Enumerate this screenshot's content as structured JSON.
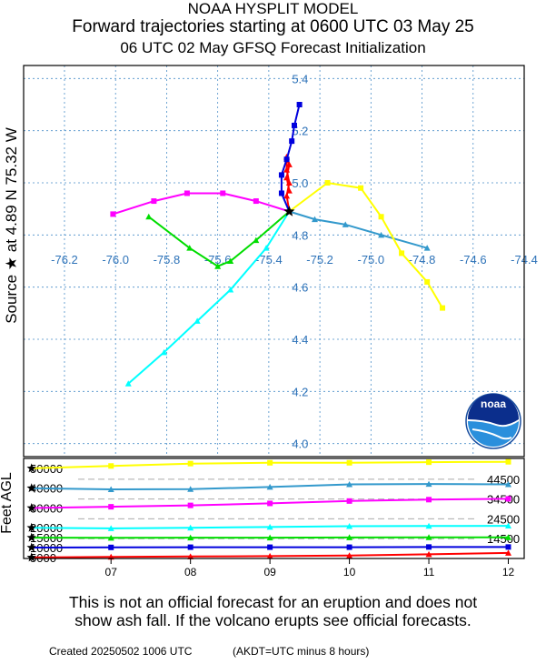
{
  "header": {
    "title": "NOAA HYSPLIT MODEL",
    "subtitle": "Forward trajectories starting at 0600 UTC 03 May 25",
    "meta": "06 UTC 02 May    GFSQ  Forecast Initialization"
  },
  "side_label_map": "Source ★  at    4.89 N   75.32 W",
  "side_label_alt": "Feet AGL",
  "logo_text": "noaa",
  "disclaimer": {
    "line1": "This is not an official forecast for an eruption and does not",
    "line2": "show ash fall. If the volcano erupts see official forecasts."
  },
  "footer": {
    "created": "Created 20250502 1006 UTC",
    "timezone": "(AKDT=UTC minus 8 hours)"
  },
  "chart_data": [
    {
      "type": "line",
      "name": "trajectory-map",
      "xlim": [
        -76.36,
        -74.4
      ],
      "ylim": [
        3.95,
        5.45
      ],
      "x_ticks": [
        -76.2,
        -76.0,
        -75.8,
        -75.6,
        -75.4,
        -75.2,
        -75.0,
        -74.8,
        -74.6,
        -74.4
      ],
      "x_tick_labels": [
        "-76.2",
        "-76.0",
        "-75.8",
        "-75.6",
        "-75.4",
        "-75.2",
        "-75.0",
        "-74.8",
        "-74.6",
        "-74.4"
      ],
      "y_ticks": [
        4.0,
        4.2,
        4.4,
        4.6,
        4.8,
        5.0,
        5.2,
        5.4
      ],
      "y_tick_labels": [
        "4.0",
        "4.2",
        "4.4",
        "4.6",
        "4.8",
        "5.0",
        "5.2",
        "5.4"
      ],
      "grid": true,
      "source": {
        "lon": -75.32,
        "lat": 4.89
      },
      "series": [
        {
          "color": "#ff0000",
          "marker": "triangle",
          "lon": [
            -75.32,
            -75.33,
            -75.32,
            -75.33,
            -75.33,
            -75.32,
            -75.33,
            -75.32
          ],
          "lat": [
            4.89,
            4.95,
            5.0,
            5.05,
            5.1,
            5.07,
            5.02,
            4.97
          ]
        },
        {
          "color": "#0000dd",
          "marker": "square",
          "lon": [
            -75.32,
            -75.35,
            -75.35,
            -75.33,
            -75.31,
            -75.3,
            -75.28
          ],
          "lat": [
            4.89,
            4.96,
            5.03,
            5.09,
            5.16,
            5.22,
            5.3
          ]
        },
        {
          "color": "#00dd00",
          "marker": "triangle",
          "lon": [
            -75.32,
            -75.45,
            -75.55,
            -75.6,
            -75.71,
            -75.87
          ],
          "lat": [
            4.89,
            4.78,
            4.7,
            4.68,
            4.75,
            4.87
          ]
        },
        {
          "color": "#00ffff",
          "marker": "triangle",
          "lon": [
            -75.32,
            -75.41,
            -75.55,
            -75.68,
            -75.81,
            -75.95
          ],
          "lat": [
            4.89,
            4.75,
            4.59,
            4.47,
            4.35,
            4.23
          ]
        },
        {
          "color": "#3399cc",
          "marker": "triangle",
          "lon": [
            -75.32,
            -75.22,
            -75.1,
            -74.96,
            -74.78
          ],
          "lat": [
            4.89,
            4.86,
            4.84,
            4.8,
            4.75
          ]
        },
        {
          "color": "#ff00ff",
          "marker": "square",
          "lon": [
            -75.32,
            -75.45,
            -75.58,
            -75.72,
            -75.85,
            -76.01
          ],
          "lat": [
            4.89,
            4.93,
            4.96,
            4.96,
            4.93,
            4.88
          ]
        },
        {
          "color": "#ffff00",
          "marker": "square",
          "lon": [
            -75.32,
            -75.17,
            -75.04,
            -74.96,
            -74.88,
            -74.78,
            -74.72
          ],
          "lat": [
            4.89,
            5.0,
            4.98,
            4.87,
            4.73,
            4.62,
            4.52
          ]
        }
      ]
    },
    {
      "type": "line",
      "name": "altitude-profile",
      "x_ticks": [
        7,
        8,
        9,
        10,
        11,
        12
      ],
      "x_tick_labels": [
        "07",
        "08",
        "09",
        "10",
        "11",
        "12"
      ],
      "xlim": [
        5.9,
        12.2
      ],
      "ylim": [
        4500,
        55000
      ],
      "ylabel": "Feet AGL",
      "left_labels": [
        {
          "value": 50000,
          "text": "50000"
        },
        {
          "value": 40000,
          "text": "40000"
        },
        {
          "value": 30000,
          "text": "30000"
        },
        {
          "value": 20000,
          "text": "20000"
        },
        {
          "value": 15000,
          "text": "15000"
        },
        {
          "value": 10000,
          "text": "10000"
        },
        {
          "value": 5000,
          "text": "5000"
        }
      ],
      "right_labels": [
        {
          "value": 44500,
          "text": "44500"
        },
        {
          "value": 34500,
          "text": "34500"
        },
        {
          "value": 24500,
          "text": "24500"
        },
        {
          "value": 14500,
          "text": "14500"
        }
      ],
      "series": [
        {
          "color": "#ffff00",
          "marker": "square",
          "x": [
            6,
            7,
            8,
            9,
            10,
            11,
            12
          ],
          "y": [
            50000,
            51200,
            52400,
            52800,
            52800,
            53100,
            53300
          ]
        },
        {
          "color": "#3399cc",
          "marker": "triangle",
          "x": [
            6,
            7,
            8,
            9,
            10,
            11,
            12
          ],
          "y": [
            40000,
            39400,
            39500,
            40600,
            41900,
            42100,
            41900
          ]
        },
        {
          "color": "#ff00ff",
          "marker": "square",
          "x": [
            6,
            7,
            8,
            9,
            10,
            11,
            12
          ],
          "y": [
            30000,
            30600,
            31300,
            32300,
            33500,
            34200,
            34600
          ]
        },
        {
          "color": "#00ffff",
          "marker": "triangle",
          "x": [
            6,
            7,
            8,
            9,
            10,
            11,
            12
          ],
          "y": [
            20000,
            19700,
            20000,
            20400,
            20800,
            20900,
            21000
          ]
        },
        {
          "color": "#00dd00",
          "marker": "triangle",
          "x": [
            6,
            7,
            8,
            9,
            10,
            11,
            12
          ],
          "y": [
            15000,
            14900,
            15000,
            15000,
            15100,
            15200,
            15200
          ]
        },
        {
          "color": "#0000dd",
          "marker": "square",
          "x": [
            6,
            7,
            8,
            9,
            10,
            11,
            12
          ],
          "y": [
            10000,
            10100,
            10200,
            10200,
            10200,
            10300,
            10300
          ]
        },
        {
          "color": "#ff0000",
          "marker": "triangle",
          "x": [
            6,
            7,
            8,
            9,
            10,
            11,
            12
          ],
          "y": [
            5000,
            5300,
            5500,
            5700,
            6000,
            6600,
            7300
          ]
        }
      ]
    }
  ]
}
